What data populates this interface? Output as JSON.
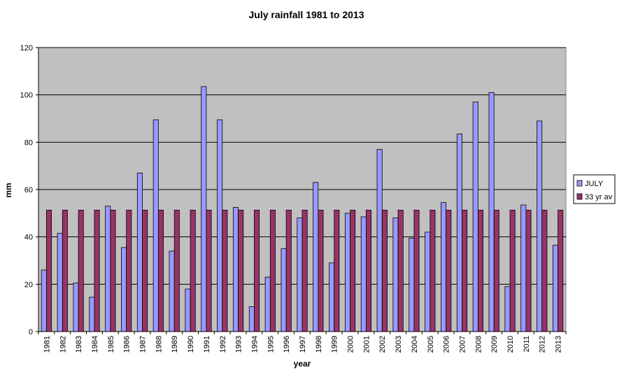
{
  "chart_data": {
    "type": "bar",
    "title": "July rainfall  1981 to 2013",
    "xlabel": "year",
    "ylabel": "mm",
    "ylim": [
      0,
      120
    ],
    "yticks": [
      0,
      20,
      40,
      60,
      80,
      100,
      120
    ],
    "grid": true,
    "legend_position": "right",
    "categories": [
      "1981",
      "1982",
      "1983",
      "1984",
      "1985",
      "1986",
      "1987",
      "1988",
      "1989",
      "1990",
      "1991",
      "1992",
      "1993",
      "1994",
      "1995",
      "1996",
      "1997",
      "1998",
      "1999",
      "2000",
      "2001",
      "2002",
      "2003",
      "2004",
      "2005",
      "2006",
      "2007",
      "2008",
      "2009",
      "2010",
      "2011",
      "2012",
      "2013"
    ],
    "series": [
      {
        "name": "JULY",
        "color": "#9999ff",
        "values": [
          26,
          41.5,
          20.5,
          14.5,
          53,
          35.5,
          67,
          89.5,
          34,
          18,
          103.5,
          89.5,
          52.5,
          10.5,
          23,
          35,
          48,
          63,
          29,
          50,
          48.5,
          77,
          48,
          39.5,
          42,
          54.5,
          83.5,
          97,
          101,
          19,
          53.5,
          89,
          36.5
        ]
      },
      {
        "name": "33 yr av",
        "color": "#993366",
        "values": [
          51.3,
          51.3,
          51.3,
          51.3,
          51.3,
          51.3,
          51.3,
          51.3,
          51.3,
          51.3,
          51.3,
          51.3,
          51.3,
          51.3,
          51.3,
          51.3,
          51.3,
          51.3,
          51.3,
          51.3,
          51.3,
          51.3,
          51.3,
          51.3,
          51.3,
          51.3,
          51.3,
          51.3,
          51.3,
          51.3,
          51.3,
          51.3,
          51.3
        ]
      }
    ],
    "plot_background": "#c0c0c0",
    "gridline_color": "#000000"
  }
}
